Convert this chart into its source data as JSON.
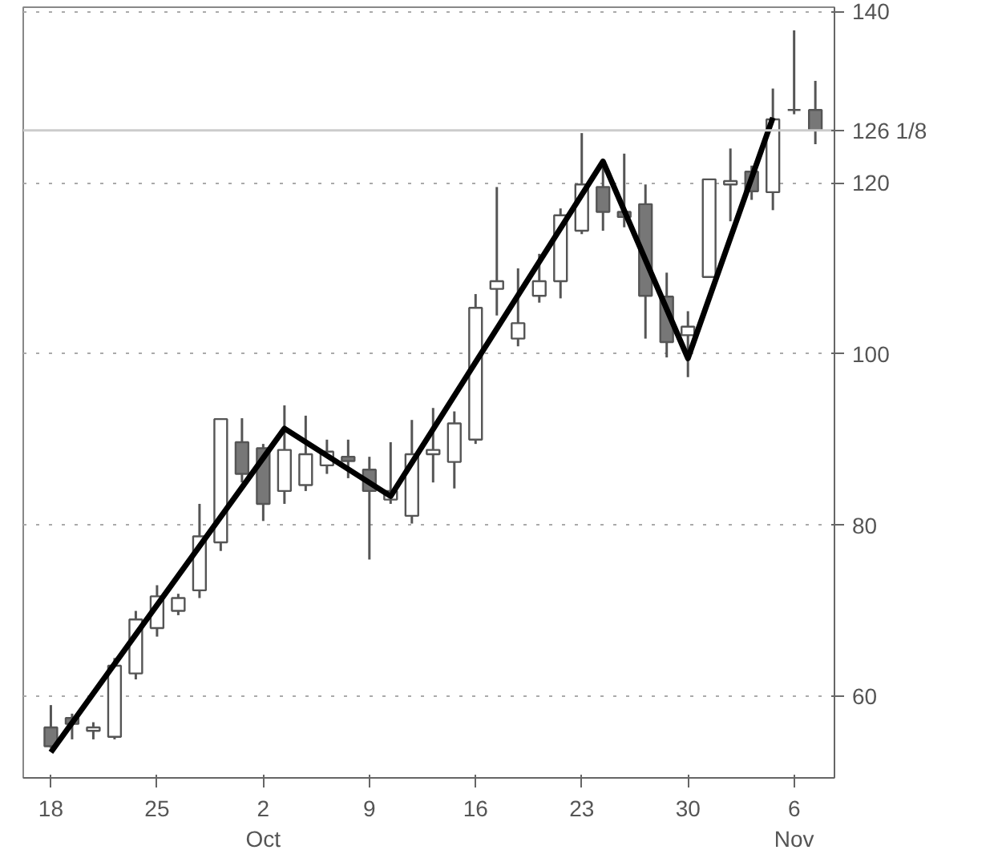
{
  "chart_data": {
    "type": "candlestick",
    "categories": [
      "18",
      null,
      null,
      null,
      null,
      "25",
      null,
      null,
      null,
      null,
      "2\nOct",
      null,
      null,
      null,
      null,
      "9",
      null,
      null,
      null,
      null,
      "16",
      null,
      null,
      null,
      null,
      "23",
      null,
      null,
      null,
      null,
      "30",
      null,
      null,
      null,
      null,
      "6\nNov",
      null
    ],
    "ohlc": [
      [
        56.4,
        59,
        54,
        54.2
      ],
      [
        57.5,
        58,
        55,
        56.8
      ],
      [
        56,
        57,
        55,
        56.4
      ],
      [
        55.3,
        64.5,
        55,
        63.6
      ],
      [
        62.7,
        70,
        62,
        69
      ],
      [
        68,
        73,
        67,
        71.7
      ],
      [
        70,
        72,
        69.5,
        71.5
      ],
      [
        72.4,
        82.5,
        71.5,
        78.7
      ],
      [
        78,
        92.4,
        77,
        92.4
      ],
      [
        89.7,
        92.5,
        85,
        86
      ],
      [
        89,
        89.5,
        80.5,
        82.5
      ],
      [
        84,
        94,
        82.5,
        88.8
      ],
      [
        84.7,
        92.8,
        84,
        88.3
      ],
      [
        87,
        90,
        86,
        88.6
      ],
      [
        88,
        90,
        85.5,
        87.5
      ],
      [
        86.5,
        88,
        76,
        84
      ],
      [
        83,
        89.7,
        82.5,
        84
      ],
      [
        81.1,
        92.3,
        80.2,
        88.3
      ],
      [
        88.3,
        93.7,
        85,
        88.8
      ],
      [
        87.4,
        93.3,
        84.3,
        91.9
      ],
      [
        90,
        107,
        89.5,
        105.4
      ],
      [
        107.6,
        119.5,
        104.5,
        108.5
      ],
      [
        101.8,
        110,
        100.9,
        103.6
      ],
      [
        106.8,
        111.7,
        106,
        108.5
      ],
      [
        108.5,
        117,
        106.5,
        116.2
      ],
      [
        114.4,
        125.8,
        114,
        119.8
      ],
      [
        119.5,
        122.2,
        114.4,
        116.6
      ],
      [
        116.6,
        123.4,
        114.8,
        116
      ],
      [
        117.5,
        119.8,
        101.8,
        106.8
      ],
      [
        106.7,
        109.5,
        99.6,
        101.4
      ],
      [
        102.2,
        105,
        97.3,
        103.2
      ],
      [
        109,
        120.4,
        109,
        120.4
      ],
      [
        119.8,
        124,
        115.5,
        120.2
      ],
      [
        121.3,
        122,
        118,
        119
      ],
      [
        118.9,
        131,
        116.8,
        127.4
      ],
      [
        128.5,
        137.8,
        128,
        128.5
      ],
      [
        128.5,
        131.9,
        124.5,
        126.1
      ]
    ],
    "series": [
      {
        "type": "line",
        "color": "#000000",
        "values": [
          53.5,
          null,
          null,
          null,
          null,
          null,
          null,
          null,
          null,
          null,
          null,
          91.3,
          null,
          null,
          null,
          null,
          83.4,
          null,
          null,
          null,
          null,
          null,
          null,
          null,
          null,
          null,
          122.5,
          null,
          null,
          null,
          99.5,
          null,
          null,
          null,
          127.6,
          null,
          null
        ]
      }
    ],
    "ylim": [
      50.5,
      140.5
    ],
    "yticks": [
      60,
      80,
      100,
      120,
      140
    ],
    "grid": "y",
    "ref_lines": [
      {
        "axis": "y",
        "value": 126.125,
        "label": "126 1/8",
        "color": "#cccccc"
      }
    ]
  }
}
